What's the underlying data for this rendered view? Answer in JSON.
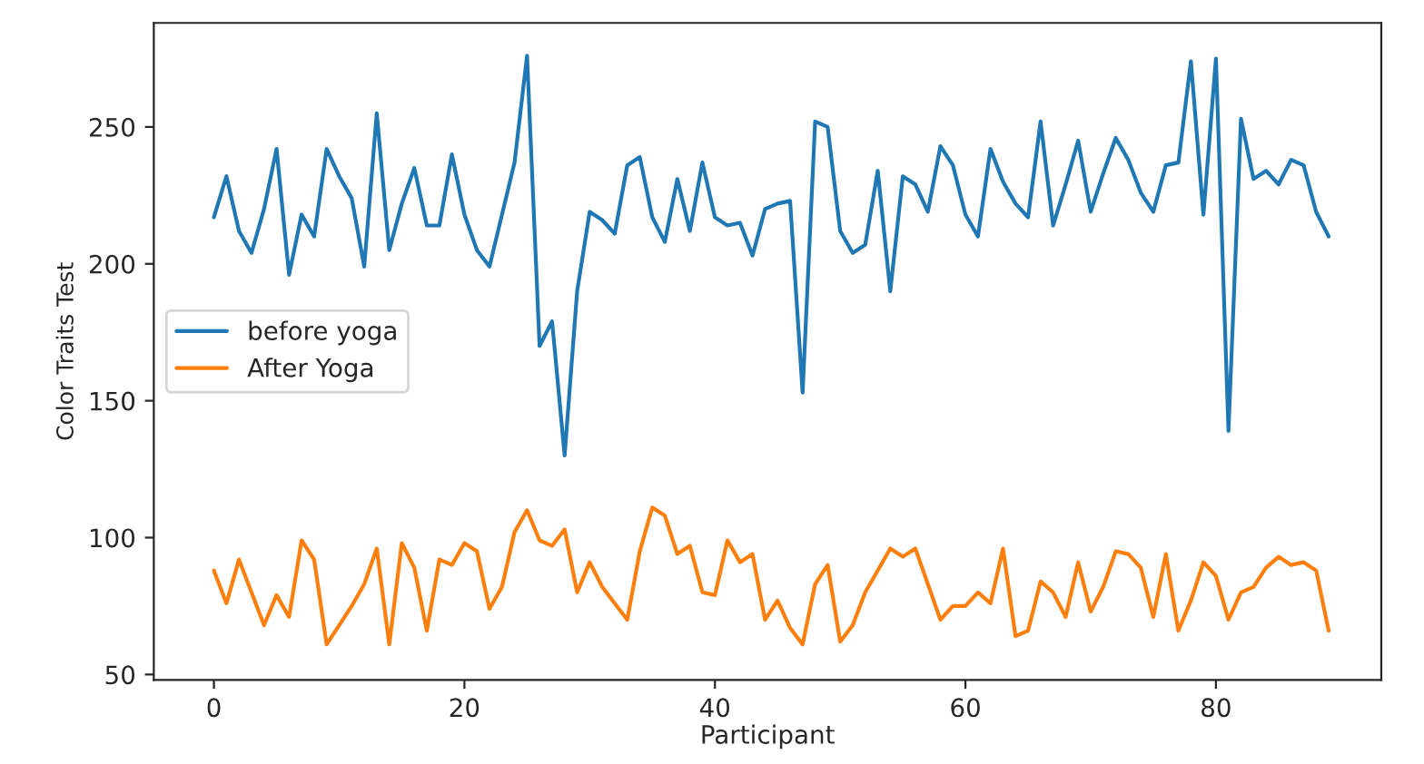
{
  "chart_data": {
    "type": "line",
    "xlabel": "Participant",
    "ylabel": "Color Traits Test",
    "x": [
      0,
      1,
      2,
      3,
      4,
      5,
      6,
      7,
      8,
      9,
      10,
      11,
      12,
      13,
      14,
      15,
      16,
      17,
      18,
      19,
      20,
      21,
      22,
      23,
      24,
      25,
      26,
      27,
      28,
      29,
      30,
      31,
      32,
      33,
      34,
      35,
      36,
      37,
      38,
      39,
      40,
      41,
      42,
      43,
      44,
      45,
      46,
      47,
      48,
      49,
      50,
      51,
      52,
      53,
      54,
      55,
      56,
      57,
      58,
      59,
      60,
      61,
      62,
      63,
      64,
      65,
      66,
      67,
      68,
      69,
      70,
      71,
      72,
      73,
      74,
      75,
      76,
      77,
      78,
      79,
      80,
      81,
      82,
      83,
      84,
      85,
      86,
      87,
      88,
      89
    ],
    "series": [
      {
        "name": "before yoga",
        "color": "#1f77b4",
        "values": [
          217,
          232,
          212,
          204,
          220,
          242,
          196,
          218,
          210,
          242,
          232,
          224,
          199,
          255,
          205,
          222,
          235,
          214,
          214,
          240,
          218,
          205,
          199,
          218,
          237,
          276,
          170,
          179,
          130,
          190,
          219,
          216,
          211,
          236,
          239,
          217,
          208,
          231,
          212,
          237,
          217,
          214,
          215,
          203,
          220,
          222,
          223,
          153,
          252,
          250,
          212,
          204,
          207,
          234,
          190,
          232,
          229,
          219,
          243,
          236,
          218,
          210,
          242,
          230,
          222,
          217,
          252,
          214,
          229,
          245,
          219,
          233,
          246,
          238,
          226,
          219,
          236,
          237,
          274,
          218,
          275,
          139,
          253,
          231,
          234,
          229,
          238,
          236,
          219,
          210
        ]
      },
      {
        "name": "After Yoga",
        "color": "#ff7f0e",
        "values": [
          88,
          76,
          92,
          80,
          68,
          79,
          71,
          99,
          92,
          61,
          68,
          75,
          83,
          96,
          61,
          98,
          89,
          66,
          92,
          90,
          98,
          95,
          74,
          82,
          102,
          110,
          99,
          97,
          103,
          80,
          91,
          82,
          76,
          70,
          95,
          111,
          108,
          94,
          97,
          80,
          79,
          99,
          91,
          94,
          70,
          77,
          67,
          61,
          83,
          90,
          62,
          68,
          80,
          88,
          96,
          93,
          96,
          83,
          70,
          75,
          75,
          80,
          76,
          96,
          64,
          66,
          84,
          80,
          71,
          91,
          73,
          82,
          95,
          94,
          89,
          71,
          94,
          66,
          77,
          91,
          86,
          70,
          80,
          82,
          89,
          93,
          90,
          91,
          88,
          66
        ]
      }
    ],
    "xlim": [
      -4.8,
      93.2
    ],
    "ylim": [
      48,
      288
    ],
    "xticks": [
      0,
      20,
      40,
      60,
      80
    ],
    "yticks": [
      50,
      100,
      150,
      200,
      250
    ],
    "grid": false,
    "legend": "center left",
    "line_style": "solid",
    "marker": "none"
  }
}
